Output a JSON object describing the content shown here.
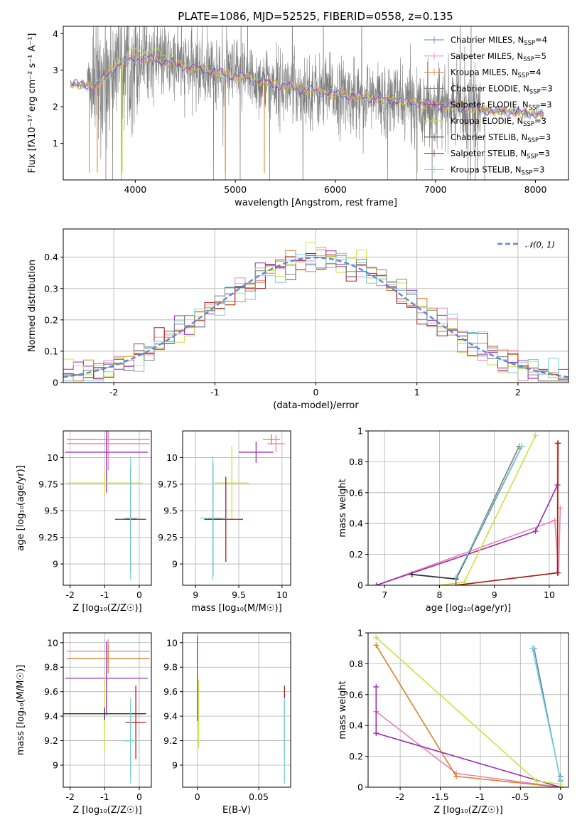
{
  "figure": {
    "title": "PLATE=1086, MJD=52525, FIBERID=0558, z=0.135"
  },
  "models": [
    {
      "name": "Chabrier MILES",
      "nssp": "4",
      "color": "#5f80b8"
    },
    {
      "name": "Salpeter MILES",
      "nssp": "5",
      "color": "#e784b5"
    },
    {
      "name": "Kroupa MILES",
      "nssp": "4",
      "color": "#d9822b"
    },
    {
      "name": "Chabrier ELODIE",
      "nssp": "3",
      "color": "#7f7f7f"
    },
    {
      "name": "Salpeter ELODIE",
      "nssp": "3",
      "color": "#9a2cb4"
    },
    {
      "name": "Kroupa ELODIE",
      "nssp": "3",
      "color": "#c8e33e"
    },
    {
      "name": "Chabrier STELIB",
      "nssp": "3",
      "color": "#333333"
    },
    {
      "name": "Salpeter STELIB",
      "nssp": "3",
      "color": "#a81e1e"
    },
    {
      "name": "Kroupa STELIB",
      "nssp": "3",
      "color": "#76d2d6"
    }
  ],
  "chart_data": [
    {
      "id": "spectrum",
      "type": "line",
      "xlabel": "wavelength [Angstrom, rest frame]",
      "ylabel": "Flux [fλ10⁻¹⁷ erg cm⁻² s⁻¹ A⁻¹]",
      "xlim": [
        3280,
        8330
      ],
      "ylim": [
        0.0,
        4.2
      ],
      "xticks": [
        4000,
        5000,
        6000,
        7000,
        8000
      ],
      "yticks": [
        1,
        2,
        3,
        4
      ],
      "grid": false,
      "legend_position": "right",
      "data_range": [
        3350,
        8080
      ],
      "continuum_points": [
        [
          3350,
          2.65
        ],
        [
          3600,
          2.55
        ],
        [
          3800,
          3.1
        ],
        [
          4000,
          3.35
        ],
        [
          4200,
          3.3
        ],
        [
          4500,
          3.1
        ],
        [
          5000,
          2.85
        ],
        [
          5500,
          2.55
        ],
        [
          6000,
          2.35
        ],
        [
          6500,
          2.2
        ],
        [
          7000,
          2.05
        ],
        [
          7500,
          1.9
        ],
        [
          8080,
          1.8
        ]
      ]
    },
    {
      "id": "residuals",
      "type": "step",
      "xlabel": "(data-model)/error",
      "ylabel": "Normed distribution",
      "xlim": [
        -2.5,
        2.5
      ],
      "ylim": [
        0.0,
        0.49
      ],
      "xticks": [
        -2,
        -1,
        0,
        1,
        2
      ],
      "yticks": [
        0.0,
        0.1,
        0.2,
        0.3,
        0.4
      ],
      "grid": true,
      "legend_position": "top-right",
      "reference_curve": {
        "name": "𝒩(0, 1)",
        "color": "#5b8ad6",
        "mean": 0,
        "sigma": 1
      },
      "bins": {
        "start": -2.5,
        "width": 0.1,
        "count": 50
      }
    },
    {
      "id": "age-vs-metallicity",
      "type": "errorbar",
      "xlabel": "Z [log₁₀(Z/Z☉)]",
      "ylabel": "age  [log₁₀(age/yr)]",
      "xlim": [
        -2.2,
        0.35
      ],
      "ylim": [
        8.8,
        10.25
      ],
      "xticks": [
        -2,
        -1,
        0
      ],
      "yticks": [
        9.0,
        9.25,
        9.5,
        9.75,
        10.0
      ],
      "grid": true,
      "points": [
        {
          "m": 2,
          "x": -0.9,
          "xerr": 1.2,
          "y": 10.17,
          "yerr": 0.05
        },
        {
          "m": 1,
          "x": -0.9,
          "xerr": 1.2,
          "y": 10.13,
          "yerr": 0.25
        },
        {
          "m": 4,
          "x": -0.95,
          "xerr": 1.2,
          "y": 10.05,
          "yerr": 0.38
        },
        {
          "m": 5,
          "x": -1.0,
          "xerr": 1.1,
          "y": 9.76,
          "yerr": 0.12
        },
        {
          "m": 6,
          "x": -0.25,
          "xerr": 0.15,
          "y": 9.42,
          "yerr": 0.5
        },
        {
          "m": 7,
          "x": -0.25,
          "xerr": 0.45,
          "y": 9.42,
          "yerr": 0.05
        },
        {
          "m": 8,
          "x": -0.25,
          "xerr": 0.2,
          "y": 9.43,
          "yerr": 0.58
        }
      ]
    },
    {
      "id": "age-vs-mass",
      "type": "errorbar",
      "xlabel": "mass [log₁₀(M/M☉)]",
      "ylabel": "",
      "xlim": [
        8.85,
        10.1
      ],
      "ylim": [
        8.8,
        10.25
      ],
      "xticks": [
        9.0,
        9.5,
        10.0
      ],
      "yticks": [
        9.0,
        9.25,
        9.5,
        9.75,
        10.0
      ],
      "grid": true,
      "points": [
        {
          "m": 2,
          "x": 9.88,
          "xerr": 0.1,
          "y": 10.17,
          "yerr": 0.05
        },
        {
          "m": 1,
          "x": 9.93,
          "xerr": 0.1,
          "y": 10.13,
          "yerr": 0.08
        },
        {
          "m": 4,
          "x": 9.7,
          "xerr": 0.2,
          "y": 10.05,
          "yerr": 0.1
        },
        {
          "m": 5,
          "x": 9.42,
          "xerr": 0.2,
          "y": 9.76,
          "yerr": 0.35
        },
        {
          "m": 6,
          "x": 9.2,
          "xerr": 0.1,
          "y": 9.42,
          "yerr": 0.53
        },
        {
          "m": 7,
          "x": 9.35,
          "xerr": 0.2,
          "y": 9.42,
          "yerr": 0.4
        },
        {
          "m": 8,
          "x": 9.2,
          "xerr": 0.15,
          "y": 9.43,
          "yerr": 0.58
        }
      ]
    },
    {
      "id": "mass-weight-vs-age",
      "type": "line",
      "xlabel": "age  [log₁₀(age/yr)]",
      "ylabel": "mass weight",
      "xlim": [
        6.7,
        10.35
      ],
      "ylim": [
        0.0,
        1.0
      ],
      "xticks": [
        7,
        8,
        9,
        10
      ],
      "yticks": [
        0.0,
        0.2,
        0.4,
        0.6,
        0.8,
        1.0
      ],
      "grid": true,
      "series": [
        {
          "m": 0,
          "x": [
            7.5,
            8.3,
            9.5
          ],
          "y": [
            0.07,
            0.04,
            0.9
          ]
        },
        {
          "m": 1,
          "x": [
            6.85,
            10.1,
            10.17,
            10.2
          ],
          "y": [
            0.0,
            0.42,
            0.08,
            0.5
          ]
        },
        {
          "m": 2,
          "x": [
            8.3,
            10.15,
            10.15
          ],
          "y": [
            0.0,
            0.08,
            0.92
          ]
        },
        {
          "m": 3,
          "x": [
            7.5,
            8.3,
            9.45
          ],
          "y": [
            0.07,
            0.04,
            0.9
          ]
        },
        {
          "m": 4,
          "x": [
            6.85,
            9.75,
            10.15
          ],
          "y": [
            0.0,
            0.35,
            0.65
          ]
        },
        {
          "m": 5,
          "x": [
            8.0,
            8.45,
            9.75
          ],
          "y": [
            0.0,
            0.02,
            0.97
          ]
        },
        {
          "m": 6,
          "x": [
            7.5,
            8.3,
            9.5
          ],
          "y": [
            0.07,
            0.04,
            0.9
          ]
        },
        {
          "m": 7,
          "x": [
            8.3,
            10.15,
            10.16
          ],
          "y": [
            0.0,
            0.08,
            0.92
          ]
        },
        {
          "m": 8,
          "x": [
            8.3,
            9.5
          ],
          "y": [
            0.05,
            0.9
          ]
        }
      ]
    },
    {
      "id": "mass-vs-metallicity",
      "type": "errorbar",
      "xlabel": "Z [log₁₀(Z/Z☉)]",
      "ylabel": "mass [log₁₀(M/M☉)]",
      "xlim": [
        -2.2,
        0.35
      ],
      "ylim": [
        8.82,
        10.08
      ],
      "xticks": [
        -2,
        -1,
        0
      ],
      "yticks": [
        9.0,
        9.2,
        9.4,
        9.6,
        9.8,
        10.0
      ],
      "grid": true,
      "points": [
        {
          "m": 1,
          "x": -0.9,
          "xerr": 1.2,
          "y": 9.93,
          "yerr": 0.1
        },
        {
          "m": 2,
          "x": -0.9,
          "xerr": 1.2,
          "y": 9.87,
          "yerr": 0.12
        },
        {
          "m": 4,
          "x": -0.95,
          "xerr": 1.2,
          "y": 9.71,
          "yerr": 0.3
        },
        {
          "m": 5,
          "x": -1.0,
          "xerr": 1.2,
          "y": 9.42,
          "yerr": 0.3
        },
        {
          "m": 6,
          "x": -1.0,
          "xerr": 1.2,
          "y": 9.42,
          "yerr": 0.05
        },
        {
          "m": 7,
          "x": -0.1,
          "xerr": 0.3,
          "y": 9.35,
          "yerr": 0.3
        },
        {
          "m": 3,
          "x": -0.25,
          "xerr": 0.2,
          "y": 9.2,
          "yerr": 0.3
        },
        {
          "m": 8,
          "x": -0.25,
          "xerr": 0.2,
          "y": 9.2,
          "yerr": 0.35
        }
      ]
    },
    {
      "id": "mass-vs-ebv",
      "type": "errorbar",
      "xlabel": "E(B-V)",
      "ylabel": "",
      "xlim": [
        -0.012,
        0.076
      ],
      "ylim": [
        8.82,
        10.08
      ],
      "xticks": [
        0.0,
        0.05
      ],
      "yticks": [
        9.0,
        9.2,
        9.4,
        9.6,
        9.8,
        10.0
      ],
      "grid": true,
      "points": [
        {
          "m": 1,
          "x": 0.0,
          "xerr": 0.0,
          "y": 9.93,
          "yerr": 0.1
        },
        {
          "m": 4,
          "x": 0.0,
          "xerr": 0.0,
          "y": 9.71,
          "yerr": 0.35
        },
        {
          "m": 5,
          "x": 0.001,
          "xerr": 0.0,
          "y": 9.42,
          "yerr": 0.28
        },
        {
          "m": 7,
          "x": 0.071,
          "xerr": 0.0,
          "y": 9.35,
          "yerr": 0.3
        },
        {
          "m": 8,
          "x": 0.071,
          "xerr": 0.0,
          "y": 9.2,
          "yerr": 0.35
        }
      ]
    },
    {
      "id": "mass-weight-vs-metallicity",
      "type": "line",
      "xlabel": "Z [log₁₀(Z/Z☉)]",
      "ylabel": "mass weight",
      "xlim": [
        -2.4,
        0.1
      ],
      "ylim": [
        0.0,
        1.0
      ],
      "xticks": [
        -2.0,
        -1.5,
        -1.0,
        -0.5,
        0.0
      ],
      "yticks": [
        0.0,
        0.2,
        0.4,
        0.6,
        0.8,
        1.0
      ],
      "grid": true,
      "series": [
        {
          "m": 0,
          "x": [
            -0.33,
            0.0,
            0.0
          ],
          "y": [
            0.9,
            0.04,
            0.07
          ]
        },
        {
          "m": 1,
          "x": [
            -2.3,
            -1.3,
            0.0
          ],
          "y": [
            0.49,
            0.09,
            0.0
          ]
        },
        {
          "m": 2,
          "x": [
            -2.3,
            -1.3,
            0.0
          ],
          "y": [
            0.92,
            0.07,
            0.0
          ]
        },
        {
          "m": 4,
          "x": [
            -2.3,
            -2.3,
            0.0
          ],
          "y": [
            0.65,
            0.35,
            0.0
          ]
        },
        {
          "m": 5,
          "x": [
            -2.3,
            -0.3,
            0.0
          ],
          "y": [
            0.97,
            0.04,
            0.02
          ]
        },
        {
          "m": 8,
          "x": [
            -0.35,
            0.0
          ],
          "y": [
            0.9,
            0.05
          ]
        }
      ]
    }
  ]
}
